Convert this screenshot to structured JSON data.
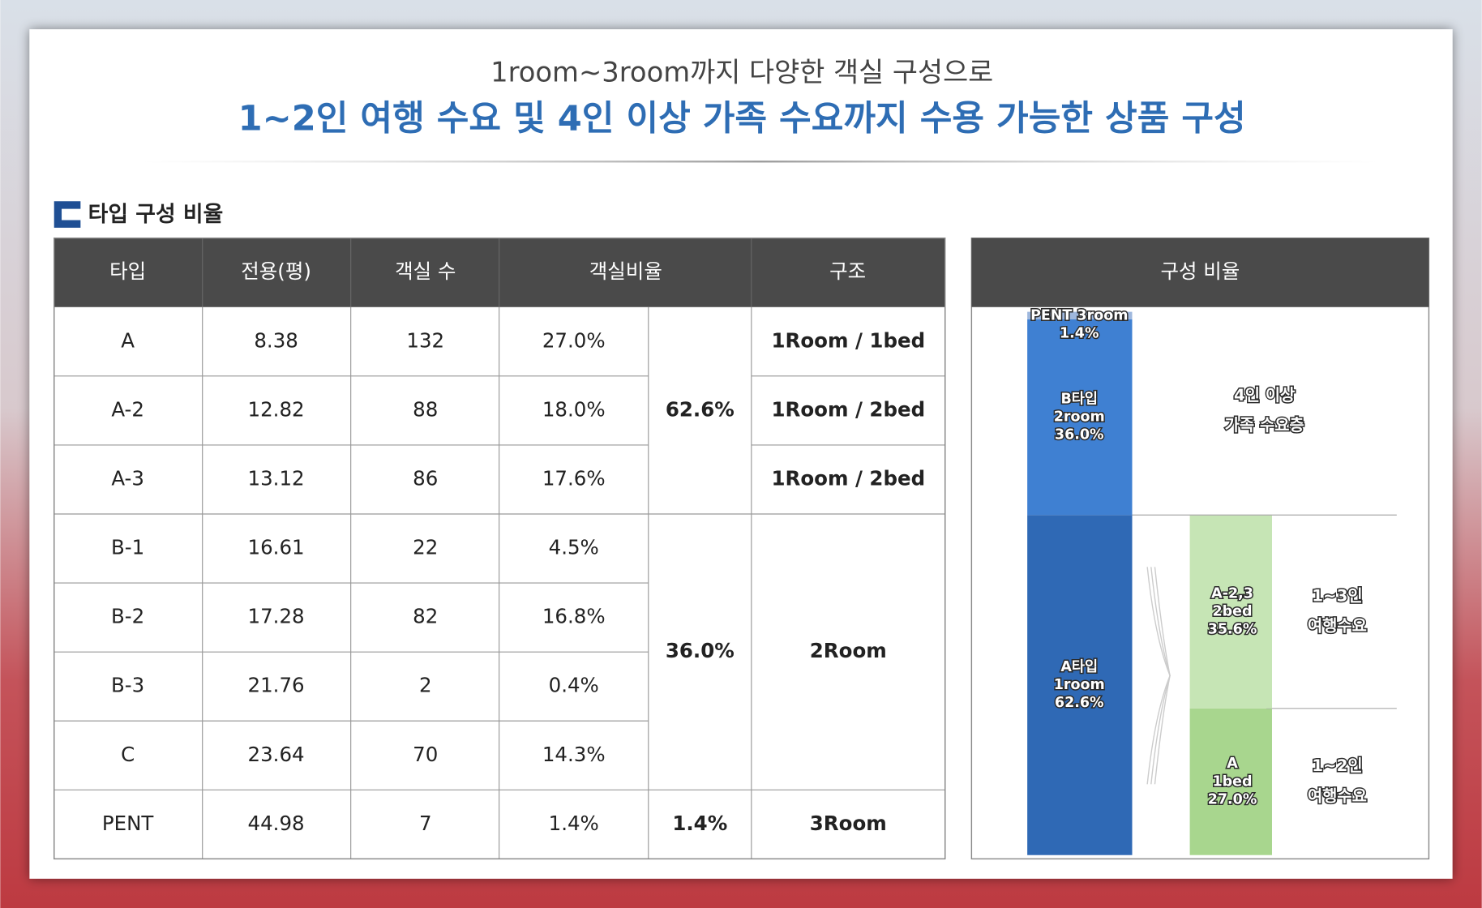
{
  "header": {
    "subtitle": "1room~3room까지 다양한 객실 구성으로",
    "title": "1~2인 여행 수요 및 4인 이상 가족 수요까지 수용 가능한 상품 구성"
  },
  "section_title": "타입 구성 비율",
  "table": {
    "header": [
      "타입",
      "전용(평)",
      "객실 수",
      "객실비율",
      "구조"
    ],
    "groups": [
      {
        "ratio": "62.6%",
        "rows": [
          [
            "A",
            "8.38",
            "132",
            "27.0%"
          ],
          [
            "A-2",
            "12.82",
            "88",
            "18.0%"
          ],
          [
            "A-3",
            "13.12",
            "86",
            "17.6%"
          ]
        ],
        "structures": [
          "1Room / 1bed",
          "1Room / 2bed",
          "1Room / 2bed"
        ]
      },
      {
        "ratio": "36.0%",
        "rows": [
          [
            "B-1",
            "16.61",
            "22",
            "4.5%"
          ],
          [
            "B-2",
            "17.28",
            "82",
            "16.8%"
          ],
          [
            "B-3",
            "21.76",
            "2",
            "0.4%"
          ],
          [
            "C",
            "23.64",
            "70",
            "14.3%"
          ]
        ],
        "structures": [
          "2Room"
        ]
      },
      {
        "ratio": "1.4%",
        "rows": [
          [
            "PENT",
            "44.98",
            "7",
            "1.4%"
          ]
        ],
        "structures": [
          "3Room"
        ]
      }
    ]
  },
  "composition": {
    "title": "구성 비율",
    "total_bar": [
      {
        "lines": [
          "A타입",
          "1room"
        ],
        "value": 62.6,
        "value_label": "62.6%",
        "color": "#2f69b5"
      },
      {
        "lines": [
          "B타입",
          "2room"
        ],
        "value": 36.0,
        "value_label": "36.0%",
        "color": "#3f80d2"
      },
      {
        "lines": [
          "PENT 3room"
        ],
        "value": 1.4,
        "value_label": "1.4%",
        "color": "#9fb8de"
      }
    ],
    "detail_bar": [
      {
        "lines": [
          "A",
          "1bed"
        ],
        "value": 27.0,
        "value_label": "27.0%",
        "color": "#a8d68e",
        "note": [
          "1~2인",
          "여행수요"
        ]
      },
      {
        "lines": [
          "A-2,3",
          "2bed"
        ],
        "value": 35.6,
        "value_label": "35.6%",
        "color": "#c6e5b5",
        "note": [
          "1~3인",
          "여행수요"
        ]
      }
    ],
    "upper_note": [
      "4인 이상",
      "가족 수요층"
    ]
  }
}
